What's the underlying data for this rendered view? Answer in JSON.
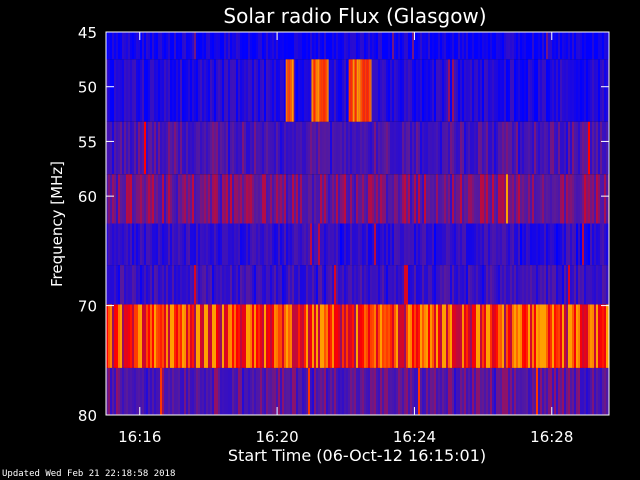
{
  "chart_data": {
    "type": "heatmap",
    "title": "Solar radio Flux (Glasgow)",
    "xlabel": "Start Time (06-Oct-12 16:15:01)",
    "ylabel": "Frequency [MHz]",
    "x_start": "16:15:01",
    "x_end": "16:29:40",
    "x_ticks": [
      "16:16",
      "16:20",
      "16:24",
      "16:28"
    ],
    "ylim": [
      45,
      80
    ],
    "y_ticks": [
      "45",
      "50",
      "55",
      "60",
      "70",
      "80"
    ],
    "colors": {
      "low": "#0000ff",
      "mid": "#5a1a9a",
      "high": "#ff0000",
      "peak": "#ffa000"
    },
    "bands": [
      {
        "f_start": 45.0,
        "f_end": 47.5,
        "level": 0.1
      },
      {
        "f_start": 47.5,
        "f_end": 53.2,
        "level": 0.18
      },
      {
        "f_start": 53.2,
        "f_end": 58.0,
        "level": 0.4
      },
      {
        "f_start": 58.0,
        "f_end": 62.5,
        "level": 0.55
      },
      {
        "f_start": 62.5,
        "f_end": 66.3,
        "level": 0.25
      },
      {
        "f_start": 66.3,
        "f_end": 69.9,
        "level": 0.32
      },
      {
        "f_start": 69.9,
        "f_end": 75.7,
        "level": 0.88
      },
      {
        "f_start": 75.7,
        "f_end": 80.0,
        "level": 0.45
      }
    ],
    "bursts": [
      {
        "time_start": "16:20:15",
        "time_end": "16:20:30",
        "f_start": 47.5,
        "f_end": 53.2,
        "level": 1.0
      },
      {
        "time_start": "16:21:00",
        "time_end": "16:21:30",
        "f_start": 47.5,
        "f_end": 53.2,
        "level": 1.0
      },
      {
        "time_start": "16:22:05",
        "time_end": "16:22:45",
        "f_start": 47.5,
        "f_end": 53.2,
        "level": 1.0
      }
    ]
  },
  "footer": "Updated Wed Feb 21 22:18:58 2018"
}
